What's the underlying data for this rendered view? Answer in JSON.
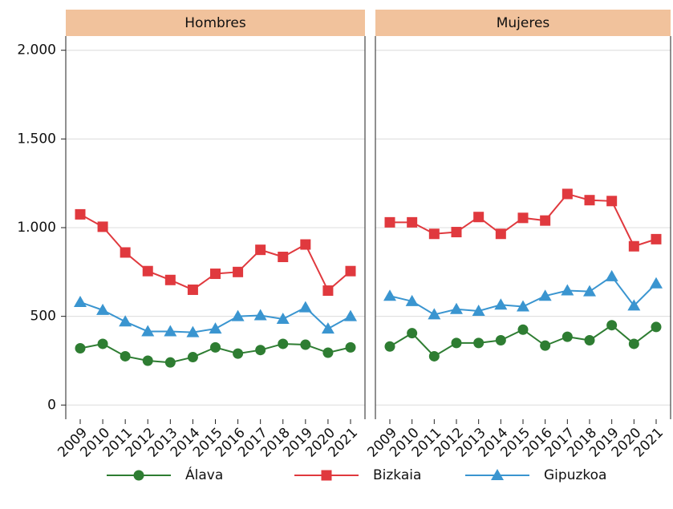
{
  "chart_data": {
    "type": "line",
    "categories": [
      "2009",
      "2010",
      "2011",
      "2012",
      "2013",
      "2014",
      "2015",
      "2016",
      "2017",
      "2018",
      "2019",
      "2020",
      "2021"
    ],
    "ylim": [
      -80,
      2080
    ],
    "yticks": [
      0,
      500,
      {
        "value": 1000,
        "label": "1.000"
      },
      {
        "value": 1500,
        "label": "1.500"
      },
      {
        "value": 2000,
        "label": "2.000"
      }
    ],
    "grid": true,
    "series": [
      {
        "name": "Álava",
        "color": "#2e7d32",
        "marker": "circle"
      },
      {
        "name": "Bizkaia",
        "color": "#e0393e",
        "marker": "square"
      },
      {
        "name": "Gipuzkoa",
        "color": "#3a95d0",
        "marker": "triangle"
      }
    ],
    "panels": [
      {
        "title": "Hombres",
        "series": [
          {
            "values": [
              320,
              345,
              275,
              250,
              240,
              270,
              325,
              290,
              310,
              345,
              340,
              295,
              325
            ]
          },
          {
            "values": [
              1075,
              1005,
              860,
              755,
              705,
              650,
              740,
              750,
              875,
              835,
              905,
              645,
              755
            ]
          },
          {
            "values": [
              580,
              535,
              470,
              415,
              415,
              410,
              430,
              500,
              505,
              485,
              550,
              430,
              500
            ]
          }
        ]
      },
      {
        "title": "Mujeres",
        "series": [
          {
            "values": [
              330,
              405,
              275,
              350,
              350,
              365,
              425,
              335,
              385,
              365,
              450,
              345,
              440
            ]
          },
          {
            "values": [
              1030,
              1030,
              965,
              975,
              1060,
              965,
              1055,
              1040,
              1190,
              1155,
              1150,
              895,
              935
            ]
          },
          {
            "values": [
              615,
              585,
              510,
              540,
              530,
              565,
              555,
              615,
              645,
              640,
              725,
              560,
              685
            ]
          }
        ]
      }
    ]
  }
}
